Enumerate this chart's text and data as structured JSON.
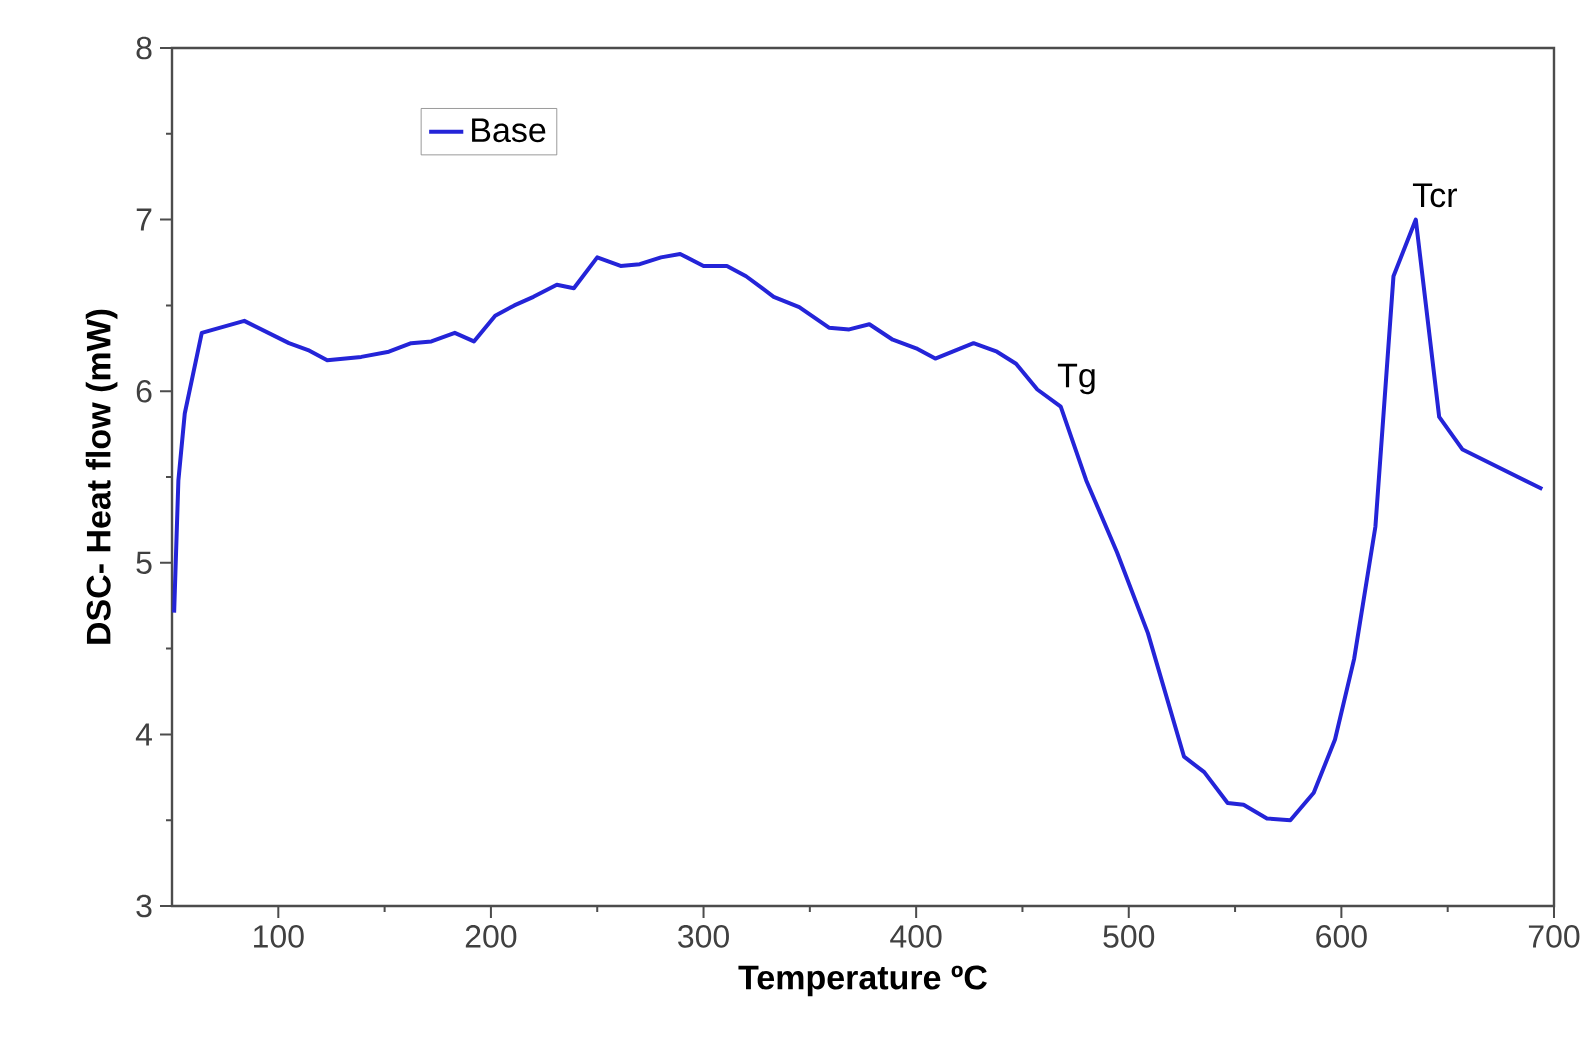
{
  "chart_data": {
    "type": "line",
    "xlabel": "Temperature ºC",
    "ylabel": "DSC- Heat flow (mW)",
    "xlim": [
      50,
      700
    ],
    "ylim": [
      3,
      8
    ],
    "xticks": [
      100,
      200,
      300,
      400,
      500,
      600,
      700
    ],
    "yticks": [
      3,
      4,
      5,
      6,
      7,
      8
    ],
    "legend": "top left",
    "grid": false,
    "marker": "none",
    "line_style": "solid",
    "series": [
      {
        "name": "Base",
        "color": "#2424d8",
        "x": [
          51,
          53,
          56,
          64,
          84,
          105,
          114,
          123,
          139,
          152,
          162.5,
          172,
          183,
          192,
          202,
          211,
          220,
          231,
          239,
          250,
          261,
          270,
          280,
          289,
          300,
          311,
          320,
          333,
          345,
          359,
          368.5,
          378,
          389,
          400,
          409,
          427,
          438,
          447,
          457,
          468,
          480,
          494.5,
          509,
          526,
          535.5,
          546.5,
          554,
          565,
          576,
          587,
          597,
          606,
          616,
          624.5,
          635,
          646,
          657,
          694.5
        ],
        "values": [
          4.71,
          5.48,
          5.87,
          6.34,
          6.41,
          6.28,
          6.24,
          6.18,
          6.2,
          6.23,
          6.28,
          6.29,
          6.34,
          6.29,
          6.44,
          6.5,
          6.55,
          6.62,
          6.6,
          6.78,
          6.73,
          6.74,
          6.78,
          6.8,
          6.73,
          6.73,
          6.67,
          6.55,
          6.49,
          6.37,
          6.36,
          6.39,
          6.3,
          6.25,
          6.19,
          6.28,
          6.23,
          6.16,
          6.01,
          5.91,
          5.48,
          5.06,
          4.59,
          3.87,
          3.78,
          3.6,
          3.59,
          3.51,
          3.5,
          3.66,
          3.97,
          4.44,
          5.21,
          6.67,
          7.0,
          5.85,
          5.66,
          5.43
        ]
      }
    ],
    "annotations": [
      {
        "text": "Tg",
        "x": 468,
        "y": 5.91
      },
      {
        "text": "Tcr",
        "x": 635,
        "y": 7.0
      }
    ]
  }
}
